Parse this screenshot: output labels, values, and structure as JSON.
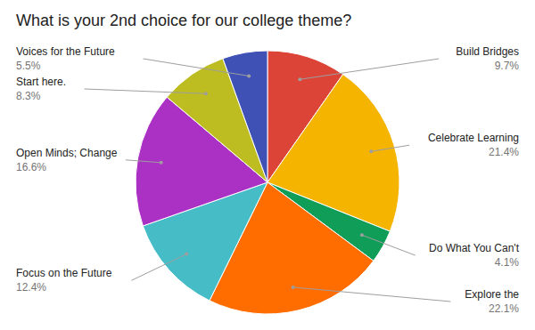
{
  "chart_data": {
    "type": "pie",
    "title": "What is your 2nd choice for our college theme?",
    "categories": [
      "Build Bridges",
      "Celebrate Learning",
      "Do What You Can't",
      "Explore the",
      "Focus on the Future",
      "Open Minds; Change",
      "Start here.",
      "Voices for the Future"
    ],
    "values": [
      9.7,
      21.4,
      4.1,
      22.1,
      12.4,
      16.6,
      8.3,
      5.5
    ],
    "value_labels": [
      "9.7%",
      "21.4%",
      "4.1%",
      "22.1%",
      "12.4%",
      "16.6%",
      "8.3%",
      "5.5%"
    ],
    "colors": [
      "#db4437",
      "#f4b400",
      "#0f9d58",
      "#ff6d01",
      "#46bdc6",
      "#ab30c4",
      "#bdbd22",
      "#3f51b5"
    ],
    "data_labels": true
  }
}
